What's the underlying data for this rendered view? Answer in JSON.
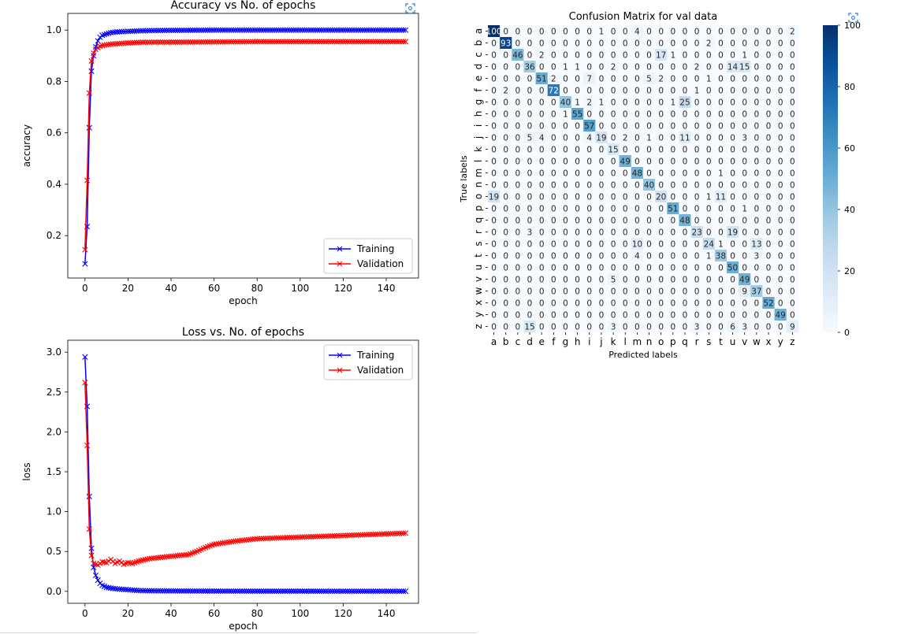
{
  "chart_data": [
    {
      "type": "line",
      "title": "Accuracy vs No. of epochs",
      "xlabel": "epoch",
      "ylabel": "accuracy",
      "xlim": [
        -8,
        155
      ],
      "ylim": [
        0.035,
        1.065
      ],
      "xticks": [
        0,
        20,
        40,
        60,
        80,
        100,
        120,
        140
      ],
      "yticks": [
        0.2,
        0.4,
        0.6,
        0.8,
        1.0
      ],
      "ytick_labels": [
        "0.2",
        "0.4",
        "0.6",
        "0.8",
        "1.0"
      ],
      "legend_position": "lower right",
      "series": [
        {
          "name": "Training",
          "color": "#0000ff",
          "marker": "x",
          "x": [
            0,
            1,
            2,
            3,
            4,
            5,
            6,
            7,
            8,
            10,
            12,
            15,
            20,
            25,
            30,
            40,
            60,
            80,
            100,
            120,
            149
          ],
          "values": [
            0.09,
            0.235,
            0.62,
            0.84,
            0.9,
            0.935,
            0.958,
            0.972,
            0.98,
            0.985,
            0.99,
            0.993,
            0.995,
            0.997,
            0.998,
            0.999,
            1.0,
            1.0,
            1.0,
            1.0,
            1.0
          ]
        },
        {
          "name": "Validation",
          "color": "#ff0000",
          "marker": "x",
          "x": [
            0,
            1,
            2,
            3,
            4,
            5,
            6,
            7,
            8,
            10,
            12,
            15,
            20,
            25,
            30,
            40,
            60,
            80,
            100,
            120,
            149
          ],
          "values": [
            0.145,
            0.415,
            0.755,
            0.88,
            0.91,
            0.925,
            0.932,
            0.937,
            0.94,
            0.943,
            0.945,
            0.947,
            0.95,
            0.952,
            0.953,
            0.953,
            0.954,
            0.955,
            0.955,
            0.955,
            0.955
          ]
        }
      ]
    },
    {
      "type": "line",
      "title": "Loss vs. No. of epochs",
      "xlabel": "epoch",
      "ylabel": "loss",
      "xlim": [
        -8,
        155
      ],
      "ylim": [
        -0.15,
        3.15
      ],
      "xticks": [
        0,
        20,
        40,
        60,
        80,
        100,
        120,
        140
      ],
      "yticks": [
        0.0,
        0.5,
        1.0,
        1.5,
        2.0,
        2.5,
        3.0
      ],
      "ytick_labels": [
        "0.0",
        "0.5",
        "1.0",
        "1.5",
        "2.0",
        "2.5",
        "3.0"
      ],
      "legend_position": "upper right",
      "series": [
        {
          "name": "Training",
          "color": "#0000ff",
          "marker": "x",
          "x": [
            0,
            1,
            2,
            3,
            4,
            5,
            6,
            7,
            8,
            10,
            12,
            15,
            20,
            25,
            30,
            40,
            60,
            80,
            100,
            120,
            149
          ],
          "values": [
            2.94,
            2.32,
            1.19,
            0.54,
            0.3,
            0.2,
            0.14,
            0.1,
            0.075,
            0.05,
            0.04,
            0.03,
            0.02,
            0.01,
            0.007,
            0.005,
            0.003,
            0.002,
            0.002,
            0.001,
            0.001
          ]
        },
        {
          "name": "Validation",
          "color": "#ff0000",
          "marker": "x",
          "x": [
            0,
            1,
            2,
            3,
            4,
            5,
            6,
            7,
            8,
            10,
            12,
            14,
            16,
            18,
            20,
            22,
            25,
            30,
            40,
            48,
            52,
            56,
            60,
            70,
            80,
            100,
            120,
            149
          ],
          "values": [
            2.62,
            1.83,
            0.78,
            0.45,
            0.35,
            0.34,
            0.33,
            0.35,
            0.37,
            0.36,
            0.4,
            0.35,
            0.38,
            0.34,
            0.36,
            0.35,
            0.38,
            0.41,
            0.44,
            0.46,
            0.5,
            0.55,
            0.59,
            0.63,
            0.66,
            0.68,
            0.7,
            0.73
          ]
        }
      ]
    },
    {
      "type": "heatmap",
      "title": "Confusion Matrix for val data",
      "xlabel": "Predicted labels",
      "ylabel": "True labels",
      "labels": [
        "a",
        "b",
        "c",
        "d",
        "e",
        "f",
        "g",
        "h",
        "i",
        "j",
        "k",
        "l",
        "m",
        "n",
        "o",
        "p",
        "q",
        "r",
        "s",
        "t",
        "u",
        "v",
        "w",
        "x",
        "y",
        "z"
      ],
      "colorbar_ticks": [
        0,
        20,
        40,
        60,
        80,
        100
      ],
      "vmin": 0,
      "vmax": 100,
      "colormap": "Blues",
      "matrix": [
        [
          100,
          0,
          0,
          0,
          0,
          0,
          0,
          0,
          0,
          1,
          0,
          0,
          4,
          0,
          0,
          0,
          0,
          0,
          0,
          0,
          0,
          0,
          0,
          0,
          0,
          2
        ],
        [
          0,
          93,
          0,
          0,
          0,
          0,
          0,
          0,
          0,
          0,
          0,
          0,
          0,
          0,
          0,
          0,
          0,
          0,
          2,
          0,
          0,
          0,
          0,
          0,
          0,
          0
        ],
        [
          0,
          0,
          46,
          0,
          2,
          0,
          0,
          0,
          0,
          0,
          0,
          0,
          0,
          0,
          17,
          1,
          0,
          0,
          0,
          0,
          0,
          1,
          0,
          0,
          0,
          0
        ],
        [
          0,
          0,
          0,
          36,
          0,
          0,
          1,
          1,
          0,
          0,
          2,
          0,
          0,
          0,
          0,
          0,
          0,
          2,
          0,
          0,
          14,
          15,
          0,
          0,
          0,
          0
        ],
        [
          0,
          0,
          0,
          0,
          51,
          2,
          0,
          0,
          7,
          0,
          0,
          0,
          0,
          5,
          2,
          0,
          0,
          0,
          1,
          0,
          0,
          0,
          0,
          0,
          0,
          0
        ],
        [
          0,
          2,
          0,
          0,
          0,
          72,
          0,
          0,
          0,
          0,
          0,
          0,
          0,
          0,
          0,
          0,
          0,
          1,
          0,
          0,
          0,
          0,
          0,
          0,
          0,
          0
        ],
        [
          0,
          0,
          0,
          0,
          0,
          0,
          40,
          1,
          2,
          1,
          0,
          0,
          0,
          0,
          0,
          1,
          25,
          0,
          0,
          0,
          0,
          0,
          0,
          0,
          0,
          0
        ],
        [
          0,
          0,
          0,
          0,
          0,
          0,
          1,
          55,
          0,
          0,
          0,
          0,
          0,
          0,
          0,
          0,
          0,
          0,
          0,
          0,
          0,
          0,
          0,
          0,
          0,
          0
        ],
        [
          0,
          0,
          0,
          0,
          0,
          0,
          0,
          0,
          57,
          0,
          0,
          0,
          0,
          0,
          0,
          0,
          0,
          0,
          0,
          0,
          0,
          0,
          0,
          0,
          0,
          0
        ],
        [
          0,
          0,
          0,
          5,
          4,
          0,
          0,
          0,
          4,
          19,
          0,
          2,
          0,
          1,
          0,
          0,
          11,
          0,
          0,
          0,
          0,
          3,
          0,
          0,
          0,
          0
        ],
        [
          0,
          0,
          0,
          0,
          0,
          0,
          0,
          0,
          0,
          0,
          15,
          0,
          0,
          0,
          0,
          0,
          0,
          0,
          0,
          0,
          0,
          0,
          0,
          0,
          0,
          0
        ],
        [
          0,
          0,
          0,
          0,
          0,
          0,
          0,
          0,
          0,
          0,
          0,
          49,
          0,
          0,
          0,
          0,
          0,
          0,
          0,
          0,
          0,
          0,
          0,
          0,
          0,
          0
        ],
        [
          0,
          0,
          0,
          0,
          0,
          0,
          0,
          0,
          0,
          0,
          0,
          0,
          48,
          0,
          0,
          0,
          0,
          0,
          0,
          1,
          0,
          0,
          0,
          0,
          0,
          0
        ],
        [
          0,
          0,
          0,
          0,
          0,
          0,
          0,
          0,
          0,
          0,
          0,
          0,
          0,
          40,
          0,
          0,
          0,
          0,
          0,
          0,
          0,
          0,
          0,
          0,
          0,
          0
        ],
        [
          19,
          0,
          0,
          0,
          0,
          0,
          0,
          0,
          0,
          0,
          0,
          0,
          0,
          0,
          20,
          0,
          0,
          0,
          1,
          11,
          0,
          0,
          0,
          0,
          0,
          0
        ],
        [
          0,
          0,
          0,
          0,
          0,
          0,
          0,
          0,
          0,
          0,
          0,
          0,
          0,
          0,
          0,
          51,
          0,
          0,
          0,
          0,
          0,
          1,
          0,
          0,
          0,
          0
        ],
        [
          0,
          0,
          0,
          0,
          0,
          0,
          0,
          0,
          0,
          0,
          0,
          0,
          0,
          0,
          0,
          0,
          48,
          0,
          0,
          0,
          0,
          0,
          0,
          0,
          0,
          0
        ],
        [
          0,
          0,
          0,
          3,
          0,
          0,
          0,
          0,
          0,
          0,
          0,
          0,
          0,
          0,
          0,
          0,
          0,
          23,
          0,
          0,
          19,
          0,
          0,
          0,
          0,
          0
        ],
        [
          0,
          0,
          0,
          0,
          0,
          0,
          0,
          0,
          0,
          0,
          0,
          0,
          10,
          0,
          0,
          0,
          0,
          0,
          24,
          1,
          0,
          0,
          13,
          0,
          0,
          0
        ],
        [
          0,
          0,
          0,
          0,
          0,
          0,
          0,
          0,
          0,
          0,
          0,
          0,
          4,
          0,
          0,
          0,
          0,
          0,
          1,
          38,
          0,
          0,
          3,
          0,
          0,
          0
        ],
        [
          0,
          0,
          0,
          0,
          0,
          0,
          0,
          0,
          0,
          0,
          0,
          0,
          0,
          0,
          0,
          0,
          0,
          0,
          0,
          0,
          50,
          0,
          0,
          0,
          0,
          0
        ],
        [
          0,
          0,
          0,
          0,
          0,
          0,
          0,
          0,
          0,
          0,
          5,
          0,
          0,
          0,
          0,
          0,
          0,
          0,
          0,
          0,
          0,
          49,
          0,
          0,
          0,
          0
        ],
        [
          0,
          0,
          0,
          0,
          0,
          0,
          0,
          0,
          0,
          0,
          0,
          0,
          0,
          0,
          0,
          0,
          0,
          0,
          0,
          0,
          0,
          9,
          37,
          0,
          0,
          0
        ],
        [
          0,
          0,
          0,
          0,
          0,
          0,
          0,
          0,
          0,
          0,
          0,
          0,
          0,
          0,
          0,
          0,
          0,
          0,
          0,
          0,
          0,
          0,
          0,
          52,
          0,
          0
        ],
        [
          0,
          0,
          0,
          0,
          0,
          0,
          0,
          0,
          0,
          0,
          0,
          0,
          0,
          0,
          0,
          0,
          0,
          0,
          0,
          0,
          0,
          0,
          0,
          0,
          49,
          0
        ],
        [
          0,
          0,
          0,
          15,
          0,
          0,
          0,
          0,
          0,
          0,
          3,
          0,
          0,
          0,
          0,
          0,
          0,
          3,
          0,
          0,
          6,
          3,
          0,
          0,
          0,
          9
        ]
      ]
    }
  ],
  "ui": {
    "expand_icon": "expand-icon"
  }
}
